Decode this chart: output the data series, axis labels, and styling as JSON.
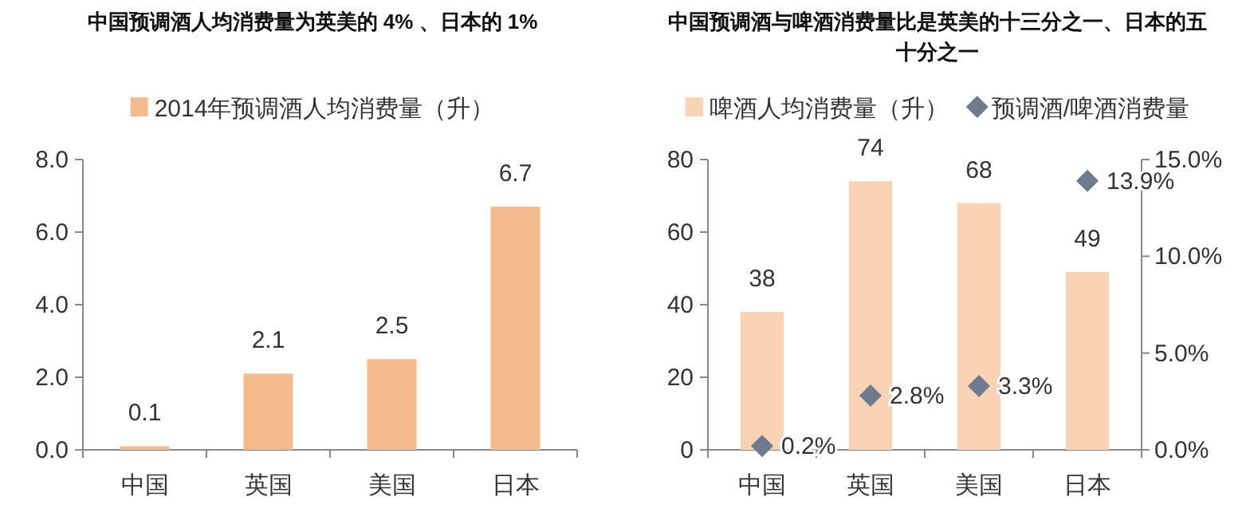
{
  "chart_data": [
    {
      "type": "bar",
      "title": "中国预调酒人均消费量为英美的 4% 、日本的 1%",
      "categories": [
        "中国",
        "英国",
        "美国",
        "日本"
      ],
      "series": [
        {
          "name": "2014年预调酒人均消费量（升）",
          "color": "#f6bb8c",
          "values": [
            0.1,
            2.1,
            2.5,
            6.7
          ]
        }
      ],
      "ylim": [
        0,
        8
      ],
      "yticks": [
        {
          "value": 0,
          "label": "0.0"
        },
        {
          "value": 2,
          "label": "2.0"
        },
        {
          "value": 4,
          "label": "4.0"
        },
        {
          "value": 6,
          "label": "6.0"
        },
        {
          "value": 8,
          "label": "8.0"
        }
      ],
      "data_labels": true,
      "legend": "top",
      "grid": false
    },
    {
      "type": "bar",
      "title": "中国预调酒与啤酒消费量比是英美的十三分之一、日本的五十分之一",
      "categories": [
        "中国",
        "英国",
        "美国",
        "日本"
      ],
      "series": [
        {
          "name": "啤酒人均消费量（升）",
          "color": "#f9d3b3",
          "values": [
            38,
            74,
            68,
            49
          ],
          "value_labels": [
            "38",
            "74",
            "68",
            "49"
          ]
        },
        {
          "name": "预调酒/啤酒消费量",
          "type": "scatter",
          "axis": "y2",
          "color": "#6e7b8e",
          "marker": "diamond",
          "values": [
            0.2,
            2.8,
            3.3,
            13.9
          ],
          "value_labels": [
            "0.2%",
            "2.8%",
            "3.3%",
            "13.9%"
          ]
        }
      ],
      "ylim": [
        0,
        80
      ],
      "yticks": [
        0,
        20,
        40,
        60,
        80
      ],
      "y2lim": [
        0,
        15
      ],
      "y2ticks": [
        {
          "value": 0,
          "label": "0.0%"
        },
        {
          "value": 5,
          "label": "5.0%"
        },
        {
          "value": 10,
          "label": "10.0%"
        },
        {
          "value": 15,
          "label": "15.0%"
        }
      ],
      "legend": "top",
      "grid": false
    }
  ]
}
